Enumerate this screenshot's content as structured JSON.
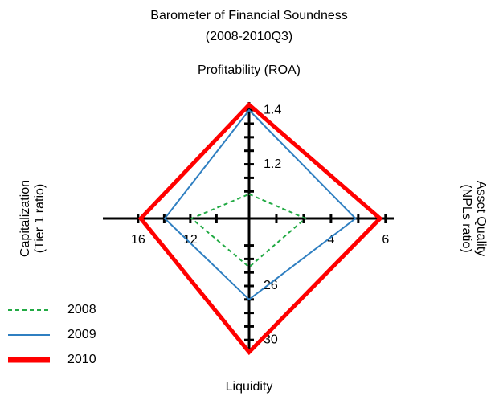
{
  "chart_data": {
    "type": "radar",
    "title": [
      "Barometer of Financial Soundness",
      "(2008-2010Q3)"
    ],
    "axes": [
      {
        "title": [
          "Profitability (ROA)"
        ],
        "lim": [
          1,
          1.43
        ],
        "ticks": [
          1.2,
          1.4
        ],
        "minor_ticks": [
          1.1,
          1.15,
          1.25,
          1.3,
          1.35
        ]
      },
      {
        "title": [
          "Asset Quality",
          "(NPLs ratio)"
        ],
        "lim": [
          1,
          6.3
        ],
        "ticks": [
          4,
          6
        ],
        "minor_ticks": [
          2,
          3,
          5
        ]
      },
      {
        "title": [
          "Liquidity"
        ],
        "lim": [
          21,
          31
        ],
        "ticks": [
          26,
          30
        ],
        "minor_ticks": [
          23,
          24,
          25,
          27,
          28,
          29
        ]
      },
      {
        "title": [
          "Capitalization",
          "(Tier 1 ratio)"
        ],
        "lim": [
          7.5,
          18.7
        ],
        "ticks": [
          12,
          16
        ],
        "minor_ticks": [
          10,
          14
        ]
      }
    ],
    "series": [
      {
        "name": "2008",
        "color": "#22aa44",
        "line_style": "dashed",
        "values": [
          1.09,
          3.06,
          24.6,
          11.9
        ]
      },
      {
        "name": "2009",
        "color": "#2f7fc1",
        "line_style": "solid",
        "values": [
          1.4,
          4.9,
          27.0,
          13.96
        ]
      },
      {
        "name": "2010",
        "color": "#ff0000",
        "line_style": "bold",
        "values": [
          1.42,
          5.8,
          30.9,
          15.8
        ]
      }
    ],
    "legend": "bottom-left"
  }
}
